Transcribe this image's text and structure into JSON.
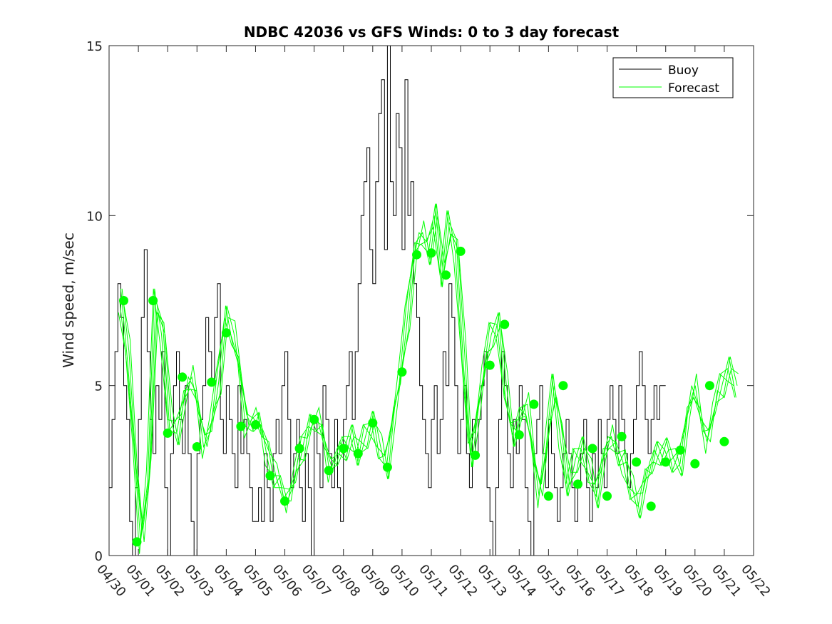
{
  "chart_data": {
    "type": "line",
    "title": "NDBC 42036 vs GFS Winds: 0 to 3 day forecast",
    "ylabel": "Wind speed, m/sec",
    "xlabel": "",
    "ylim": [
      0,
      15
    ],
    "xlim": [
      0,
      22
    ],
    "yticks": [
      0,
      5,
      10,
      15
    ],
    "xtick_labels": [
      "04/30",
      "05/01",
      "05/02",
      "05/03",
      "05/04",
      "05/05",
      "05/06",
      "05/07",
      "05/08",
      "05/09",
      "05/10",
      "05/11",
      "05/12",
      "05/13",
      "05/14",
      "05/15",
      "05/16",
      "05/17",
      "05/18",
      "05/19",
      "05/20",
      "05/21",
      "05/22"
    ],
    "legend": {
      "position": "top-right",
      "entries": [
        "Buoy",
        "Forecast"
      ]
    },
    "colors": {
      "buoy": "#000000",
      "forecast": "#00ff00"
    },
    "series": [
      {
        "name": "Buoy",
        "x_day_offset": [
          0.0,
          0.1,
          0.2,
          0.3,
          0.4,
          0.5,
          0.6,
          0.7,
          0.8,
          0.9,
          1.0,
          1.1,
          1.2,
          1.3,
          1.4,
          1.5,
          1.6,
          1.7,
          1.8,
          1.9,
          2.0,
          2.1,
          2.2,
          2.3,
          2.4,
          2.5,
          2.6,
          2.7,
          2.8,
          2.9,
          3.0,
          3.1,
          3.2,
          3.3,
          3.4,
          3.5,
          3.6,
          3.7,
          3.8,
          3.9,
          4.0,
          4.1,
          4.2,
          4.3,
          4.4,
          4.5,
          4.6,
          4.7,
          4.8,
          4.9,
          5.0,
          5.1,
          5.2,
          5.3,
          5.4,
          5.5,
          5.6,
          5.7,
          5.8,
          5.9,
          6.0,
          6.1,
          6.2,
          6.3,
          6.4,
          6.5,
          6.6,
          6.7,
          6.8,
          6.9,
          7.0,
          7.1,
          7.2,
          7.3,
          7.4,
          7.5,
          7.6,
          7.7,
          7.8,
          7.9,
          8.0,
          8.1,
          8.2,
          8.3,
          8.4,
          8.5,
          8.6,
          8.7,
          8.8,
          8.9,
          9.0,
          9.1,
          9.2,
          9.3,
          9.4,
          9.5,
          9.6,
          9.7,
          9.8,
          9.9,
          10.0,
          10.1,
          10.2,
          10.3,
          10.4,
          10.5,
          10.6,
          10.7,
          10.8,
          10.9,
          11.0,
          11.1,
          11.2,
          11.3,
          11.4,
          11.5,
          11.6,
          11.7,
          11.8,
          11.9,
          12.0,
          12.1,
          12.2,
          12.3,
          12.4,
          12.5,
          12.6,
          12.7,
          12.8,
          12.9,
          13.0,
          13.1,
          13.2,
          13.3,
          13.4,
          13.5,
          13.6,
          13.7,
          13.8,
          13.9,
          14.0,
          14.1,
          14.2,
          14.3,
          14.4,
          14.5,
          14.6,
          14.7,
          14.8,
          14.9,
          15.0,
          15.1,
          15.2,
          15.3,
          15.4,
          15.5,
          15.6,
          15.7,
          15.8,
          15.9,
          16.0,
          16.1,
          16.2,
          16.3,
          16.4,
          16.5,
          16.6,
          16.7,
          16.8,
          16.9,
          17.0,
          17.1,
          17.2,
          17.3,
          17.4,
          17.5,
          17.6,
          17.7,
          17.8,
          17.9,
          18.0,
          18.1,
          18.2,
          18.3,
          18.4,
          18.5,
          18.6,
          18.7,
          18.8,
          18.9,
          19.0,
          19.1,
          19.2,
          19.3,
          19.4,
          19.5,
          19.6,
          19.7,
          19.8,
          19.9,
          20.0,
          20.1,
          20.2,
          20.3,
          20.4,
          20.5,
          20.6,
          20.7,
          20.8,
          20.9,
          21.0,
          21.1,
          21.2,
          21.3,
          21.4
        ],
        "values": [
          2,
          4,
          6,
          8,
          7,
          5,
          4,
          1,
          0,
          2,
          4,
          7,
          9,
          6,
          4,
          3,
          5,
          4,
          6,
          2,
          0,
          3,
          5,
          6,
          4,
          3,
          5,
          3,
          1,
          0,
          3,
          4,
          5,
          7,
          6,
          5,
          7,
          8,
          4,
          3,
          5,
          4,
          3,
          2,
          5,
          3,
          4,
          3,
          2,
          1,
          1,
          2,
          1,
          3,
          2,
          1,
          3,
          4,
          3,
          5,
          6,
          4,
          2,
          3,
          4,
          2,
          1,
          3,
          2,
          0,
          4,
          3,
          2,
          5,
          4,
          3,
          2,
          4,
          2,
          1,
          4,
          5,
          6,
          4,
          6,
          8,
          10,
          11,
          12,
          9,
          8,
          11,
          13,
          14,
          9,
          15,
          11,
          10,
          13,
          12,
          9,
          14,
          10,
          11,
          8,
          7,
          5,
          4,
          3,
          2,
          4,
          5,
          3,
          4,
          6,
          5,
          8,
          7,
          5,
          3,
          4,
          5,
          3,
          2,
          4,
          3,
          4,
          5,
          6,
          2,
          1,
          0,
          2,
          4,
          6,
          5,
          3,
          2,
          4,
          3,
          5,
          4,
          2,
          1,
          0,
          3,
          4,
          5,
          3,
          2,
          4,
          3,
          2,
          1,
          2,
          3,
          4,
          3,
          2,
          1,
          2,
          3,
          4,
          2,
          1,
          3,
          2,
          4,
          3,
          2,
          4,
          5,
          4,
          3,
          5,
          4,
          3,
          2,
          3,
          4,
          5,
          6,
          5,
          4,
          3,
          4,
          5,
          4,
          5,
          5
        ]
      },
      {
        "name": "Forecast",
        "markers": [
          {
            "x": 0.5,
            "y": 7.5
          },
          {
            "x": 1.5,
            "y": 7.5
          },
          {
            "x": 0.95,
            "y": 0.4
          },
          {
            "x": 2.0,
            "y": 3.6
          },
          {
            "x": 2.5,
            "y": 5.25
          },
          {
            "x": 3.0,
            "y": 3.2
          },
          {
            "x": 3.5,
            "y": 5.1
          },
          {
            "x": 4.0,
            "y": 6.55
          },
          {
            "x": 4.5,
            "y": 3.8
          },
          {
            "x": 5.0,
            "y": 3.85
          },
          {
            "x": 5.5,
            "y": 2.35
          },
          {
            "x": 6.0,
            "y": 1.6
          },
          {
            "x": 6.5,
            "y": 3.15
          },
          {
            "x": 7.0,
            "y": 4.0
          },
          {
            "x": 7.5,
            "y": 2.5
          },
          {
            "x": 8.0,
            "y": 3.15
          },
          {
            "x": 8.5,
            "y": 3.0
          },
          {
            "x": 9.0,
            "y": 3.9
          },
          {
            "x": 9.5,
            "y": 2.6
          },
          {
            "x": 10.0,
            "y": 5.4
          },
          {
            "x": 10.5,
            "y": 8.85
          },
          {
            "x": 11.0,
            "y": 8.9
          },
          {
            "x": 11.5,
            "y": 8.25
          },
          {
            "x": 12.0,
            "y": 8.95
          },
          {
            "x": 12.5,
            "y": 2.95
          },
          {
            "x": 13.0,
            "y": 5.6
          },
          {
            "x": 13.5,
            "y": 6.8
          },
          {
            "x": 14.0,
            "y": 3.55
          },
          {
            "x": 14.5,
            "y": 4.45
          },
          {
            "x": 15.0,
            "y": 1.75
          },
          {
            "x": 15.5,
            "y": 5.0
          },
          {
            "x": 16.0,
            "y": 2.1
          },
          {
            "x": 16.5,
            "y": 3.15
          },
          {
            "x": 17.0,
            "y": 1.75
          },
          {
            "x": 17.5,
            "y": 3.5
          },
          {
            "x": 18.0,
            "y": 2.75
          },
          {
            "x": 18.5,
            "y": 1.45
          },
          {
            "x": 19.0,
            "y": 2.75
          },
          {
            "x": 19.5,
            "y": 3.1
          },
          {
            "x": 20.0,
            "y": 2.7
          },
          {
            "x": 20.5,
            "y": 5.0
          },
          {
            "x": 21.0,
            "y": 3.35
          }
        ],
        "values": [
          7.5,
          6.0,
          3.0,
          0.4,
          2.5,
          7.5,
          6.5,
          4.0,
          3.6,
          4.5,
          5.25,
          4.5,
          3.2,
          4.0,
          5.1,
          7.0,
          6.55,
          5.5,
          3.8,
          4.0,
          3.85,
          3.0,
          2.35,
          2.0,
          1.6,
          2.5,
          3.15,
          3.8,
          4.0,
          3.5,
          2.5,
          3.0,
          3.15,
          3.5,
          3.0,
          3.5,
          3.9,
          3.2,
          2.6,
          4.0,
          5.4,
          7.0,
          8.85,
          9.5,
          8.9,
          10.0,
          8.25,
          9.8,
          8.95,
          6.0,
          2.95,
          4.0,
          5.6,
          6.5,
          6.8,
          5.0,
          3.55,
          4.0,
          4.45,
          3.0,
          1.75,
          3.5,
          5.0,
          3.5,
          2.1,
          2.8,
          3.15,
          2.5,
          1.75,
          2.8,
          3.5,
          3.0,
          2.75,
          2.0,
          1.45,
          2.2,
          2.75,
          3.0,
          3.1,
          2.8,
          2.7,
          4.0,
          5.0,
          4.0,
          3.35,
          4.5,
          5.0,
          5.5,
          5.0
        ]
      }
    ]
  }
}
